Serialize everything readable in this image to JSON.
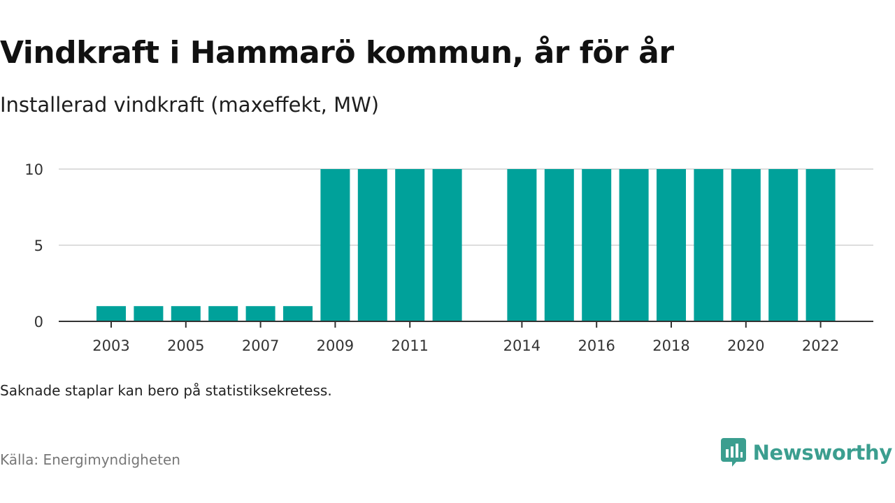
{
  "header": {
    "title": "Vindkraft i Hammarö kommun, år för år",
    "subtitle": "Installerad vindkraft (maxeffekt, MW)"
  },
  "footer": {
    "note": "Saknade staplar kan bero på statistiksekretess.",
    "source": "Källa: Energimyndigheten",
    "brand": "Newsworthy",
    "brand_icon": "newsworthy-logo-icon"
  },
  "colors": {
    "bar": "#00a19a",
    "grid": "#dddddd",
    "axis": "#333333",
    "brand": "#3b9e8f"
  },
  "chart_data": {
    "type": "bar",
    "title": "Vindkraft i Hammarö kommun, år för år",
    "subtitle": "Installerad vindkraft (maxeffekt, MW)",
    "xlabel": "",
    "ylabel": "",
    "categories": [
      "2003",
      "2004",
      "2005",
      "2006",
      "2007",
      "2008",
      "2009",
      "2010",
      "2011",
      "2012",
      "2014",
      "2015",
      "2016",
      "2017",
      "2018",
      "2019",
      "2020",
      "2021",
      "2022"
    ],
    "values": [
      1,
      1,
      1,
      1,
      1,
      1,
      10,
      10,
      10,
      10,
      10,
      10,
      10,
      10,
      10,
      10,
      10,
      10,
      10
    ],
    "x_tick_labels": [
      "2003",
      "2005",
      "2007",
      "2009",
      "2011",
      "2014",
      "2016",
      "2018",
      "2020",
      "2022"
    ],
    "y_ticks": [
      0,
      5,
      10
    ],
    "ylim": [
      0,
      10
    ],
    "grid": true,
    "legend": "none"
  }
}
